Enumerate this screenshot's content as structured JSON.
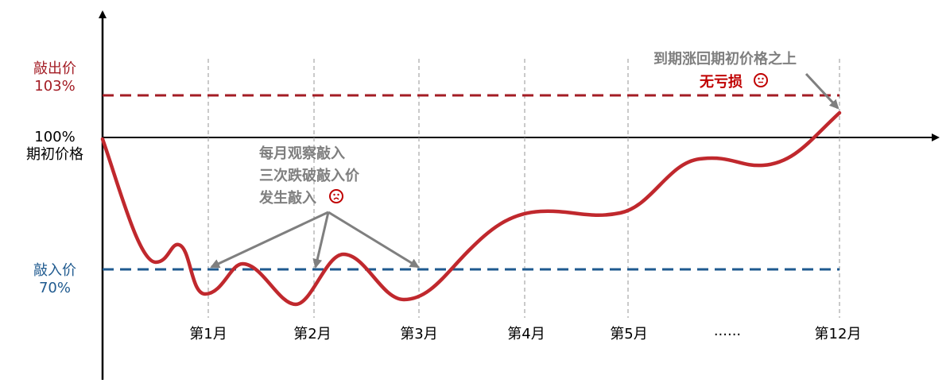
{
  "labels": {
    "knock_out_name": "敲出价",
    "knock_out_pct": "103%",
    "start_pct": "100%",
    "start_name": "期初价格",
    "knock_in_name": "敲入价",
    "knock_in_pct": "70%"
  },
  "months": [
    "第1月",
    "第2月",
    "第3月",
    "第4月",
    "第5月",
    "......",
    "第12月"
  ],
  "annotations": {
    "observe_line1": "每月观察敲入",
    "observe_line2": "三次跌破敲入价",
    "observe_line3": "发生敲入",
    "end_line1": "到期涨回期初价格之上",
    "end_line2": "无亏损",
    "face_sad": "sad-face-icon",
    "face_neutral": "neutral-face-icon"
  },
  "colors": {
    "knock_out": "#a31c24",
    "knock_in": "#1f5a8f",
    "price_line": "#c0282d",
    "annotation_gray": "#7f7f7f",
    "annotation_red": "#c00000"
  }
}
